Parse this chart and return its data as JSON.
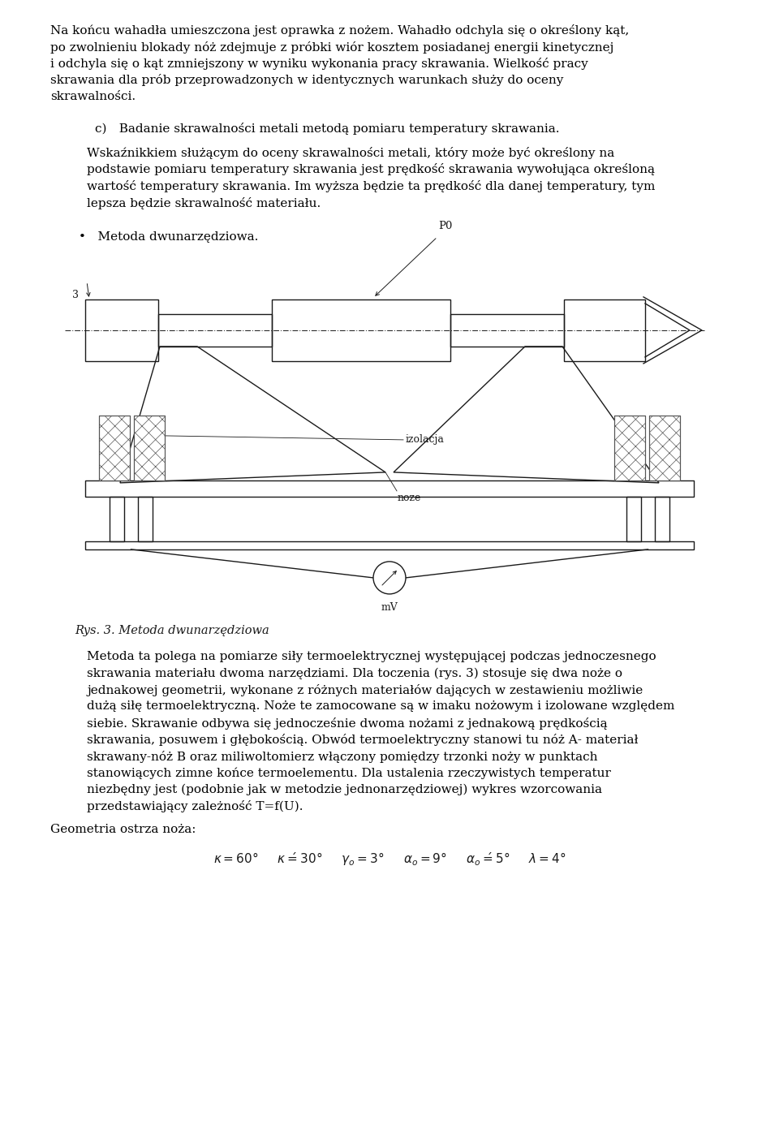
{
  "bg_color": "#ffffff",
  "text_color": "#000000",
  "page_width": 9.6,
  "page_height": 13.96,
  "dpi": 100,
  "lm": 0.62,
  "rm": 9.02,
  "fs_body": 11.0,
  "fs_small": 9.5,
  "ls": 0.205,
  "para1": "Na końcu wahadła umieszczona jest oprawka z nożem. Wahadło odchyla się o określony kąt, po zwolnieniu blokady nóż zdejmuje z próbki wiór kosztem posiadanej energii kinetycznej i odchyla się o kąt zmniejszony w wyniku wykonania pracy skrawania. Wielkość pracy skrawania dla prób przeprowadzonych w identycznych warunkach służy do oceny skrawalności.",
  "para2_c": "c) Badanie skrawalności metali metodą pomiaru temperatury skrawania.",
  "para3": "Wskaźnikkiem służącym do oceny skrawalności metali, który może być określony na podstawie pomiaru temperatury skrawania jest prędkość skrawania wywołująca określoną wartość temperatury skrawania. Im wyższa będzie ta prędkość dla danej temperatury, tym lepsza będzie skrawalność materiału.",
  "bullet": "•   Metoda dwunarzędziowa.",
  "fig_caption_italic": "Rys. 3. Metoda dwunarzędziowa",
  "para4": "Metoda ta polega na pomiarze siły termoelektrycznej występującej podczas jednoczesnego skrawania materiału dwoma narzędziami. Dla toczenia (rys. 3) stosuje się dwa noże o jednakowej geometrii, wykonane z różnych materiałów dających w zestawieniu możliwie dużą siłę termoelektryczną. Noże te zamocowane są w imaku nożowym i izolowane względem siebie. Skrawanie odbywa się jednocześnie dwoma nożami z jednakową prędkością skrawania, posuwem i głębokością. Obwód termoelektryczny stanowi tu nóż A- materiał skrawany-nóż B oraz miliwoltomierz włączony pomiędzy trzonki noży w punktach stanowiących zimne końce termoelementu. Dla ustalenia rzeczywistych temperatur niezbędny jest (podobnie jak w metodzie jednonarzędziowej) wykres wzorcowania przedstawiający zależność T=f(U).",
  "para5": "Geometria ostrza noża:",
  "line_color": "#1a1a1a",
  "lw": 1.0
}
